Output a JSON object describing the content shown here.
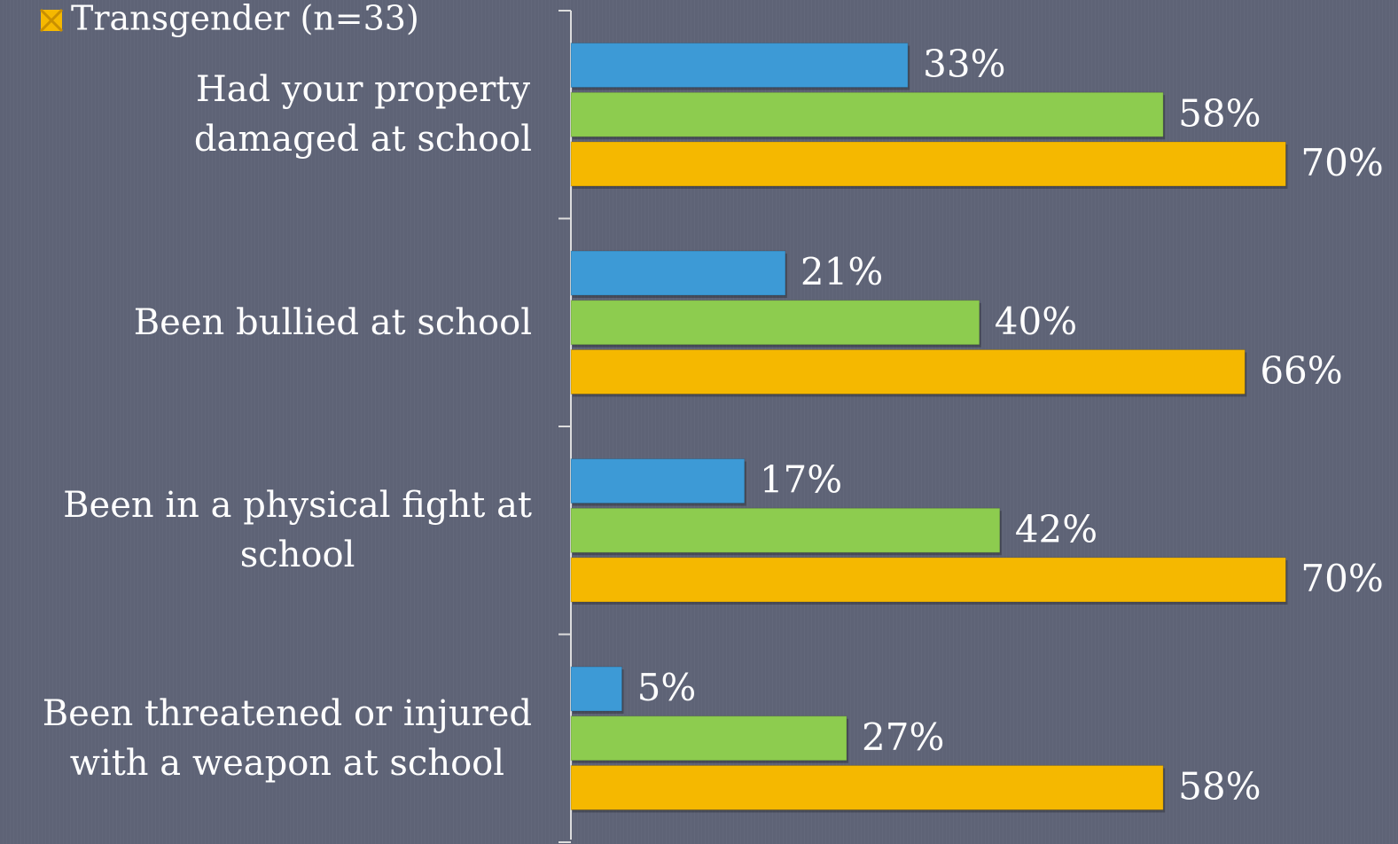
{
  "chart_data": {
    "type": "bar",
    "orientation": "horizontal",
    "categories": [
      "Had your property\ndamaged at school",
      "Been bullied at school",
      "Been in a physical fight at\nschool",
      "Been threatened or injured\nwith a weapon at school"
    ],
    "series": [
      {
        "color": "#3d9ad6",
        "values": [
          33,
          21,
          17,
          5
        ],
        "value_labels": [
          "33%",
          "21%",
          "17%",
          "5%"
        ]
      },
      {
        "color": "#8dcc4f",
        "values": [
          58,
          40,
          42,
          27
        ],
        "value_labels": [
          "58%",
          "40%",
          "42%",
          "27%"
        ]
      },
      {
        "name": "Transgender (n=33)",
        "color": "#f5b800",
        "values": [
          70,
          66,
          70,
          58
        ],
        "value_labels": [
          "70%",
          "66%",
          "70%",
          "58%"
        ]
      }
    ]
  }
}
